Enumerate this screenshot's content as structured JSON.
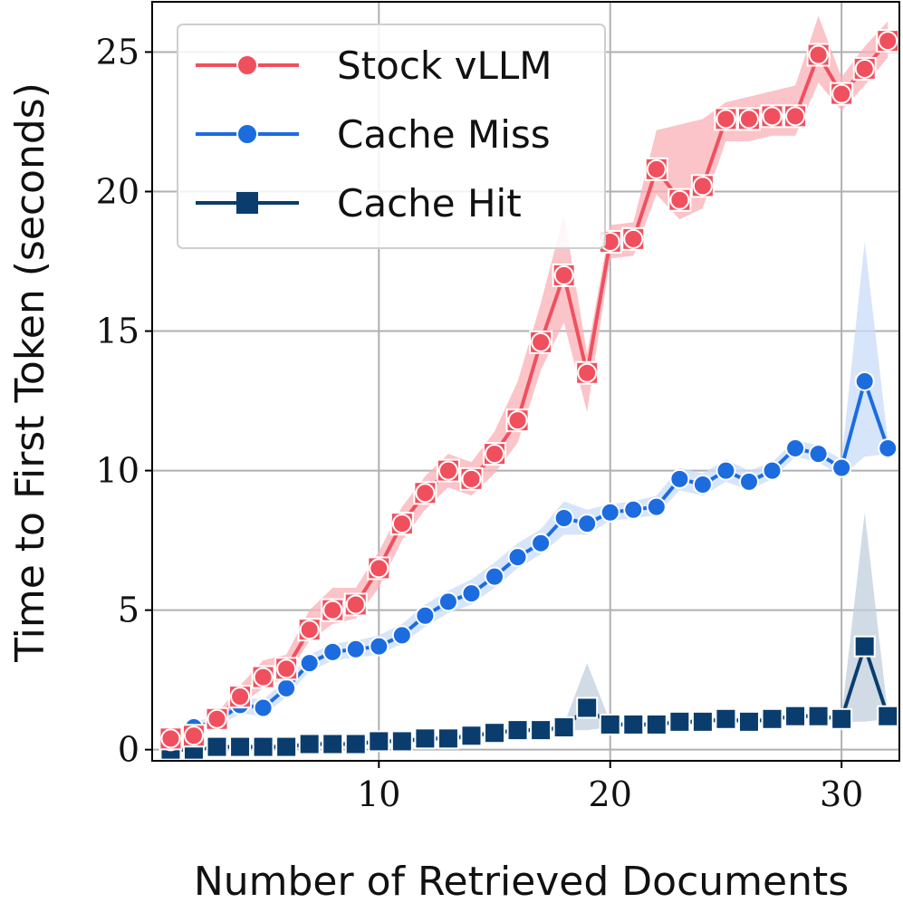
{
  "chart_data": {
    "type": "line",
    "xlabel": "Number of Retrieved Documents",
    "ylabel": "Time to First Token (seconds)",
    "xlim": [
      0.2,
      32.5
    ],
    "ylim": [
      -0.4,
      26.8
    ],
    "x_ticks": [
      10,
      20,
      30
    ],
    "y_ticks": [
      0,
      5,
      10,
      15,
      20,
      25
    ],
    "grid": true,
    "legend_position": "top-left",
    "x": [
      1,
      2,
      3,
      4,
      5,
      6,
      7,
      8,
      9,
      10,
      11,
      12,
      13,
      14,
      15,
      16,
      17,
      18,
      19,
      20,
      21,
      22,
      23,
      24,
      25,
      26,
      27,
      28,
      29,
      30,
      31,
      32
    ],
    "series": [
      {
        "name": "Stock vLLM",
        "color": "#f0505e",
        "band_color": "#f9b0b6",
        "marker": "circle",
        "values": [
          0.4,
          0.5,
          1.1,
          1.9,
          2.6,
          2.9,
          4.3,
          5.0,
          5.2,
          6.5,
          8.1,
          9.2,
          10.0,
          9.7,
          10.6,
          11.8,
          14.6,
          17.0,
          13.5,
          18.2,
          18.3,
          20.8,
          19.7,
          20.2,
          22.6,
          22.6,
          22.7,
          22.7,
          24.9,
          23.5,
          24.4,
          25.4
        ],
        "lower": [
          0.3,
          0.4,
          0.9,
          1.6,
          2.2,
          2.6,
          3.9,
          4.5,
          4.7,
          5.8,
          7.5,
          8.6,
          9.4,
          9.1,
          9.9,
          11.0,
          13.6,
          15.3,
          12.1,
          17.6,
          17.7,
          19.9,
          19.0,
          19.4,
          21.8,
          21.8,
          22.0,
          22.0,
          23.9,
          22.9,
          23.8,
          24.8
        ],
        "upper": [
          0.5,
          0.7,
          1.3,
          2.3,
          3.2,
          3.4,
          5.0,
          5.8,
          5.8,
          7.1,
          8.7,
          9.8,
          10.6,
          10.3,
          11.4,
          13.2,
          16.0,
          19.2,
          14.2,
          18.8,
          18.9,
          22.2,
          22.4,
          22.6,
          23.2,
          23.4,
          23.6,
          23.8,
          26.3,
          24.1,
          25.2,
          26.1
        ]
      },
      {
        "name": "Cache Miss",
        "color": "#1c6ce0",
        "band_color": "#c8dcf8",
        "marker": "circle",
        "values": [
          0.3,
          0.8,
          1.0,
          1.6,
          1.5,
          2.2,
          3.1,
          3.5,
          3.6,
          3.7,
          4.1,
          4.8,
          5.3,
          5.6,
          6.2,
          6.9,
          7.4,
          8.3,
          8.1,
          8.5,
          8.6,
          8.7,
          9.7,
          9.5,
          10.0,
          9.6,
          10.0,
          10.8,
          10.6,
          10.1,
          13.2,
          10.8
        ],
        "lower": [
          0.2,
          0.6,
          0.8,
          1.3,
          1.2,
          1.9,
          2.8,
          3.2,
          3.3,
          3.4,
          3.8,
          4.4,
          4.9,
          5.2,
          5.8,
          6.5,
          7.0,
          7.7,
          7.7,
          8.2,
          8.3,
          8.4,
          9.3,
          9.1,
          9.6,
          9.3,
          9.7,
          10.5,
          10.3,
          9.8,
          10.5,
          10.6
        ],
        "upper": [
          0.4,
          1.0,
          1.2,
          1.9,
          1.8,
          2.5,
          3.4,
          3.8,
          3.9,
          4.1,
          4.5,
          5.2,
          5.7,
          6.1,
          6.7,
          7.4,
          7.9,
          8.9,
          8.6,
          8.8,
          8.9,
          9.1,
          10.1,
          9.9,
          10.4,
          10.0,
          10.3,
          11.1,
          10.9,
          10.4,
          18.2,
          11.1
        ]
      },
      {
        "name": "Cache Hit",
        "color": "#0a3d6e",
        "band_color": "#c2cfdc",
        "marker": "square",
        "values": [
          0.0,
          0.0,
          0.1,
          0.1,
          0.1,
          0.1,
          0.2,
          0.2,
          0.2,
          0.3,
          0.3,
          0.4,
          0.4,
          0.5,
          0.6,
          0.7,
          0.7,
          0.8,
          1.5,
          0.9,
          0.9,
          0.9,
          1.0,
          1.0,
          1.1,
          1.0,
          1.1,
          1.2,
          1.2,
          1.1,
          3.7,
          1.2
        ],
        "lower": [
          0.0,
          0.0,
          0.0,
          0.0,
          0.0,
          0.0,
          0.1,
          0.1,
          0.1,
          0.2,
          0.2,
          0.3,
          0.3,
          0.4,
          0.5,
          0.6,
          0.6,
          0.7,
          0.7,
          0.8,
          0.8,
          0.8,
          0.9,
          0.9,
          1.0,
          0.9,
          1.0,
          1.1,
          1.1,
          1.0,
          1.0,
          1.1
        ],
        "upper": [
          0.1,
          0.1,
          0.2,
          0.2,
          0.2,
          0.2,
          0.3,
          0.3,
          0.3,
          0.4,
          0.4,
          0.5,
          0.5,
          0.6,
          0.7,
          0.8,
          0.8,
          0.9,
          3.1,
          1.0,
          1.0,
          1.0,
          1.1,
          1.1,
          1.2,
          1.1,
          1.2,
          1.3,
          1.3,
          1.2,
          8.5,
          1.3
        ]
      }
    ]
  }
}
